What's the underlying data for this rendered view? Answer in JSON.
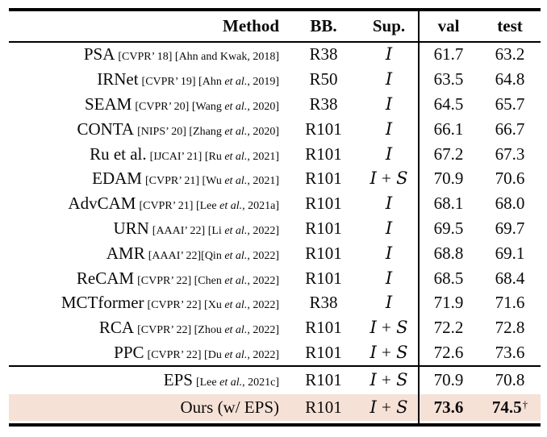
{
  "colors": {
    "highlight_row": "#f6e1d7",
    "rule": "#000000",
    "text": "#0a0a0a",
    "background": "#ffffff"
  },
  "header": {
    "method": "Method",
    "bb": "BB.",
    "sup": "Sup.",
    "val": "val",
    "test": "test"
  },
  "table": {
    "sections": [
      {
        "name": "prior-methods",
        "rows": [
          {
            "method": "PSA",
            "cite": "[CVPR’ 18] [Ahn and Kwak, 2018]",
            "bb": "R38",
            "sup": "I",
            "val": "61.7",
            "test": "63.2"
          },
          {
            "method": "IRNet",
            "cite": "[CVPR’ 19] [Ahn et al., 2019]",
            "bb": "R50",
            "sup": "I",
            "val": "63.5",
            "test": "64.8"
          },
          {
            "method": "SEAM",
            "cite": "[CVPR’ 20] [Wang et al., 2020]",
            "bb": "R38",
            "sup": "I",
            "val": "64.5",
            "test": "65.7"
          },
          {
            "method": "CONTA",
            "cite": "[NIPS’ 20] [Zhang et al., 2020]",
            "bb": "R101",
            "sup": "I",
            "val": "66.1",
            "test": "66.7"
          },
          {
            "method": "Ru et al.",
            "cite": "[IJCAI’ 21] [Ru et al., 2021]",
            "bb": "R101",
            "sup": "I",
            "val": "67.2",
            "test": "67.3"
          },
          {
            "method": "EDAM",
            "cite": "[CVPR’ 21] [Wu et al., 2021]",
            "bb": "R101",
            "sup": "I + S",
            "val": "70.9",
            "test": "70.6"
          },
          {
            "method": "AdvCAM",
            "cite": "[CVPR’ 21] [Lee et al., 2021a]",
            "bb": "R101",
            "sup": "I",
            "val": "68.1",
            "test": "68.0"
          },
          {
            "method": "URN",
            "cite": "[AAAI’ 22] [Li et al., 2022]",
            "bb": "R101",
            "sup": "I",
            "val": "69.5",
            "test": "69.7"
          },
          {
            "method": "AMR",
            "cite": "[AAAI’ 22][Qin et al., 2022]",
            "bb": "R101",
            "sup": "I",
            "val": "68.8",
            "test": "69.1"
          },
          {
            "method": "ReCAM",
            "cite": "[CVPR’ 22] [Chen et al., 2022]",
            "bb": "R101",
            "sup": "I",
            "val": "68.5",
            "test": "68.4"
          },
          {
            "method": "MCTformer",
            "cite": "[CVPR’ 22] [Xu et al., 2022]",
            "bb": "R38",
            "sup": "I",
            "val": "71.9",
            "test": "71.6"
          },
          {
            "method": "RCA",
            "cite": "[CVPR’ 22] [Zhou et al., 2022]",
            "bb": "R101",
            "sup": "I + S",
            "val": "72.2",
            "test": "72.8"
          },
          {
            "method": "PPC",
            "cite": "[CVPR’ 22] [Du et al., 2022]",
            "bb": "R101",
            "sup": "I + S",
            "val": "72.6",
            "test": "73.6"
          }
        ]
      },
      {
        "name": "baseline-and-ours",
        "rows": [
          {
            "method": "EPS",
            "cite": "[Lee et al., 2021c]",
            "bb": "R101",
            "sup": "I + S",
            "val": "70.9",
            "test": "70.8"
          },
          {
            "method": "Ours (w/ EPS)",
            "cite": "",
            "bb": "R101",
            "sup": "I + S",
            "val": "73.6",
            "test": "74.5",
            "test_dagger": "†",
            "bold_scores": true,
            "highlight": true
          }
        ]
      }
    ]
  }
}
